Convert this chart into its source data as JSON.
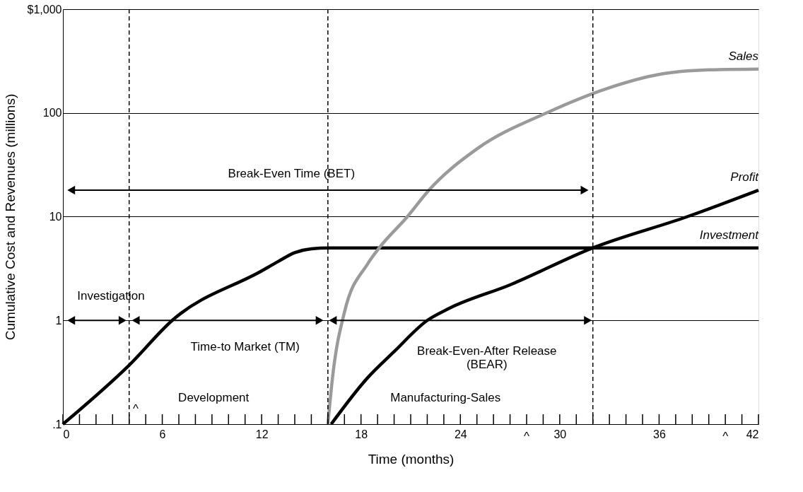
{
  "chart_data": {
    "type": "line",
    "xlabel": "Time (months)",
    "ylabel": "Cumulative Cost and Revenues (millions)",
    "log": "y",
    "grid": "y",
    "line_style": "solid",
    "xlim": [
      0,
      42
    ],
    "ylim": [
      0.1,
      1000
    ],
    "xticks": [
      0,
      {
        "value": 1,
        "label": null
      },
      {
        "value": 2,
        "label": null
      },
      {
        "value": 3,
        "label": null
      },
      {
        "value": 4,
        "label": null
      },
      {
        "value": 5,
        "label": null
      },
      6,
      {
        "value": 7,
        "label": null
      },
      {
        "value": 8,
        "label": null
      },
      {
        "value": 9,
        "label": null
      },
      {
        "value": 10,
        "label": null
      },
      {
        "value": 11,
        "label": null
      },
      12,
      {
        "value": 13,
        "label": null
      },
      {
        "value": 14,
        "label": null
      },
      {
        "value": 15,
        "label": null
      },
      {
        "value": 16,
        "label": null
      },
      {
        "value": 17,
        "label": null
      },
      18,
      {
        "value": 19,
        "label": null
      },
      {
        "value": 20,
        "label": null
      },
      {
        "value": 21,
        "label": null
      },
      {
        "value": 22,
        "label": null
      },
      {
        "value": 23,
        "label": null
      },
      24,
      {
        "value": 25,
        "label": null
      },
      {
        "value": 26,
        "label": null
      },
      {
        "value": 27,
        "label": null
      },
      {
        "value": 28,
        "label": null
      },
      {
        "value": 29,
        "label": null
      },
      30,
      {
        "value": 31,
        "label": null
      },
      {
        "value": 32,
        "label": null
      },
      {
        "value": 33,
        "label": null
      },
      {
        "value": 34,
        "label": null
      },
      {
        "value": 35,
        "label": null
      },
      36,
      {
        "value": 37,
        "label": null
      },
      {
        "value": 38,
        "label": null
      },
      {
        "value": 39,
        "label": null
      },
      {
        "value": 40,
        "label": null
      },
      {
        "value": 41,
        "label": null
      },
      42
    ],
    "yticks": [
      {
        "value": 0.1,
        "label": ".1"
      },
      1,
      10,
      100,
      {
        "value": 1000,
        "label": "$1,000"
      }
    ],
    "series": [
      {
        "name": "Investment",
        "color": "#000000",
        "x": [
          0,
          4,
          6.6,
          12,
          13,
          14,
          15,
          16,
          42
        ],
        "values": [
          0.1,
          0.37,
          1,
          3,
          3.7,
          4.5,
          4.9,
          5,
          5
        ]
      },
      {
        "name": "Sales",
        "color": "#9a9a9a",
        "x": [
          16,
          16.3,
          17,
          18.4,
          19.1,
          20.8,
          22.1,
          25,
          29.2,
          33,
          36,
          39,
          42
        ],
        "values": [
          0.1,
          0.3,
          1.2,
          3.5,
          5,
          10,
          18,
          45,
          100,
          175,
          235,
          260,
          265
        ]
      },
      {
        "name": "Profit",
        "color": "#000000",
        "x": [
          16.2,
          18.4,
          20,
          22,
          23.3,
          27,
          32,
          37.7,
          42
        ],
        "values": [
          0.1,
          0.28,
          0.5,
          1,
          1.3,
          2.2,
          5,
          10,
          18
        ]
      },
      {
        "color": "#000000",
        "marker": "triangle",
        "x": [
          0.5,
          31.5
        ],
        "values": [
          18,
          18
        ]
      },
      {
        "color": "#000000",
        "marker": "triangle",
        "x": [
          0.5,
          3.6
        ],
        "values": [
          1,
          1
        ]
      },
      {
        "color": "#000000",
        "marker": "triangle",
        "x": [
          4.4,
          15.5
        ],
        "values": [
          1,
          1
        ]
      },
      {
        "color": "#000000",
        "marker": "triangle",
        "x": [
          16.3,
          31.7
        ],
        "values": [
          1,
          1
        ]
      }
    ],
    "ref_lines": [
      {
        "axis": "x",
        "value": 4,
        "line_style": "dashed"
      },
      {
        "axis": "x",
        "value": 16,
        "line_style": "dashed"
      },
      {
        "axis": "x",
        "value": 32,
        "line_style": "dashed"
      }
    ],
    "annotations": [
      "Break-Even Time (BET)",
      "Investigation",
      "Time-to Market (TM)",
      "Break-Even-After Release\n(BEAR)",
      "Development",
      "Manufacturing-Sales",
      "^",
      "^",
      "^"
    ]
  }
}
